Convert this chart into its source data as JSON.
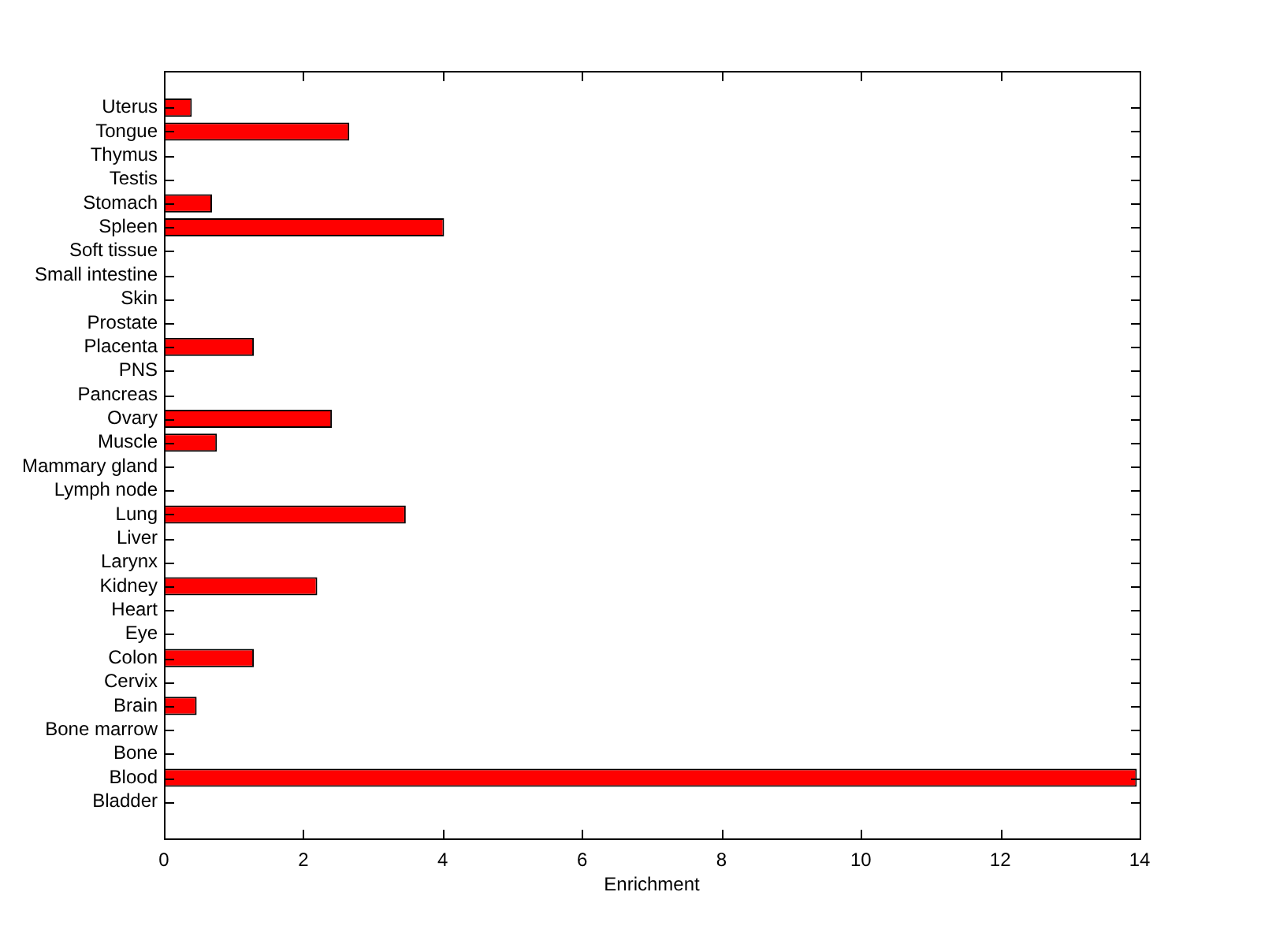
{
  "chart_data": {
    "type": "bar",
    "orientation": "horizontal",
    "xlabel": "Enrichment",
    "categories": [
      "Uterus",
      "Tongue",
      "Thymus",
      "Testis",
      "Stomach",
      "Spleen",
      "Soft tissue",
      "Small intestine",
      "Skin",
      "Prostate",
      "Placenta",
      "PNS",
      "Pancreas",
      "Ovary",
      "Muscle",
      "Mammary gland",
      "Lymph node",
      "Lung",
      "Liver",
      "Larynx",
      "Kidney",
      "Heart",
      "Eye",
      "Colon",
      "Cervix",
      "Brain",
      "Bone marrow",
      "Bone",
      "Blood",
      "Bladder"
    ],
    "values": [
      0.4,
      2.66,
      0,
      0,
      0.69,
      4.02,
      0,
      0,
      0,
      0,
      1.29,
      0,
      0,
      2.41,
      0.76,
      0,
      0,
      3.47,
      0,
      0,
      2.2,
      0,
      0,
      1.29,
      0,
      0.47,
      0,
      0,
      13.96,
      0
    ],
    "color": "#ff0000",
    "xlim": [
      0,
      14
    ],
    "xticks": [
      0,
      2,
      4,
      6,
      8,
      10,
      12,
      14
    ]
  }
}
